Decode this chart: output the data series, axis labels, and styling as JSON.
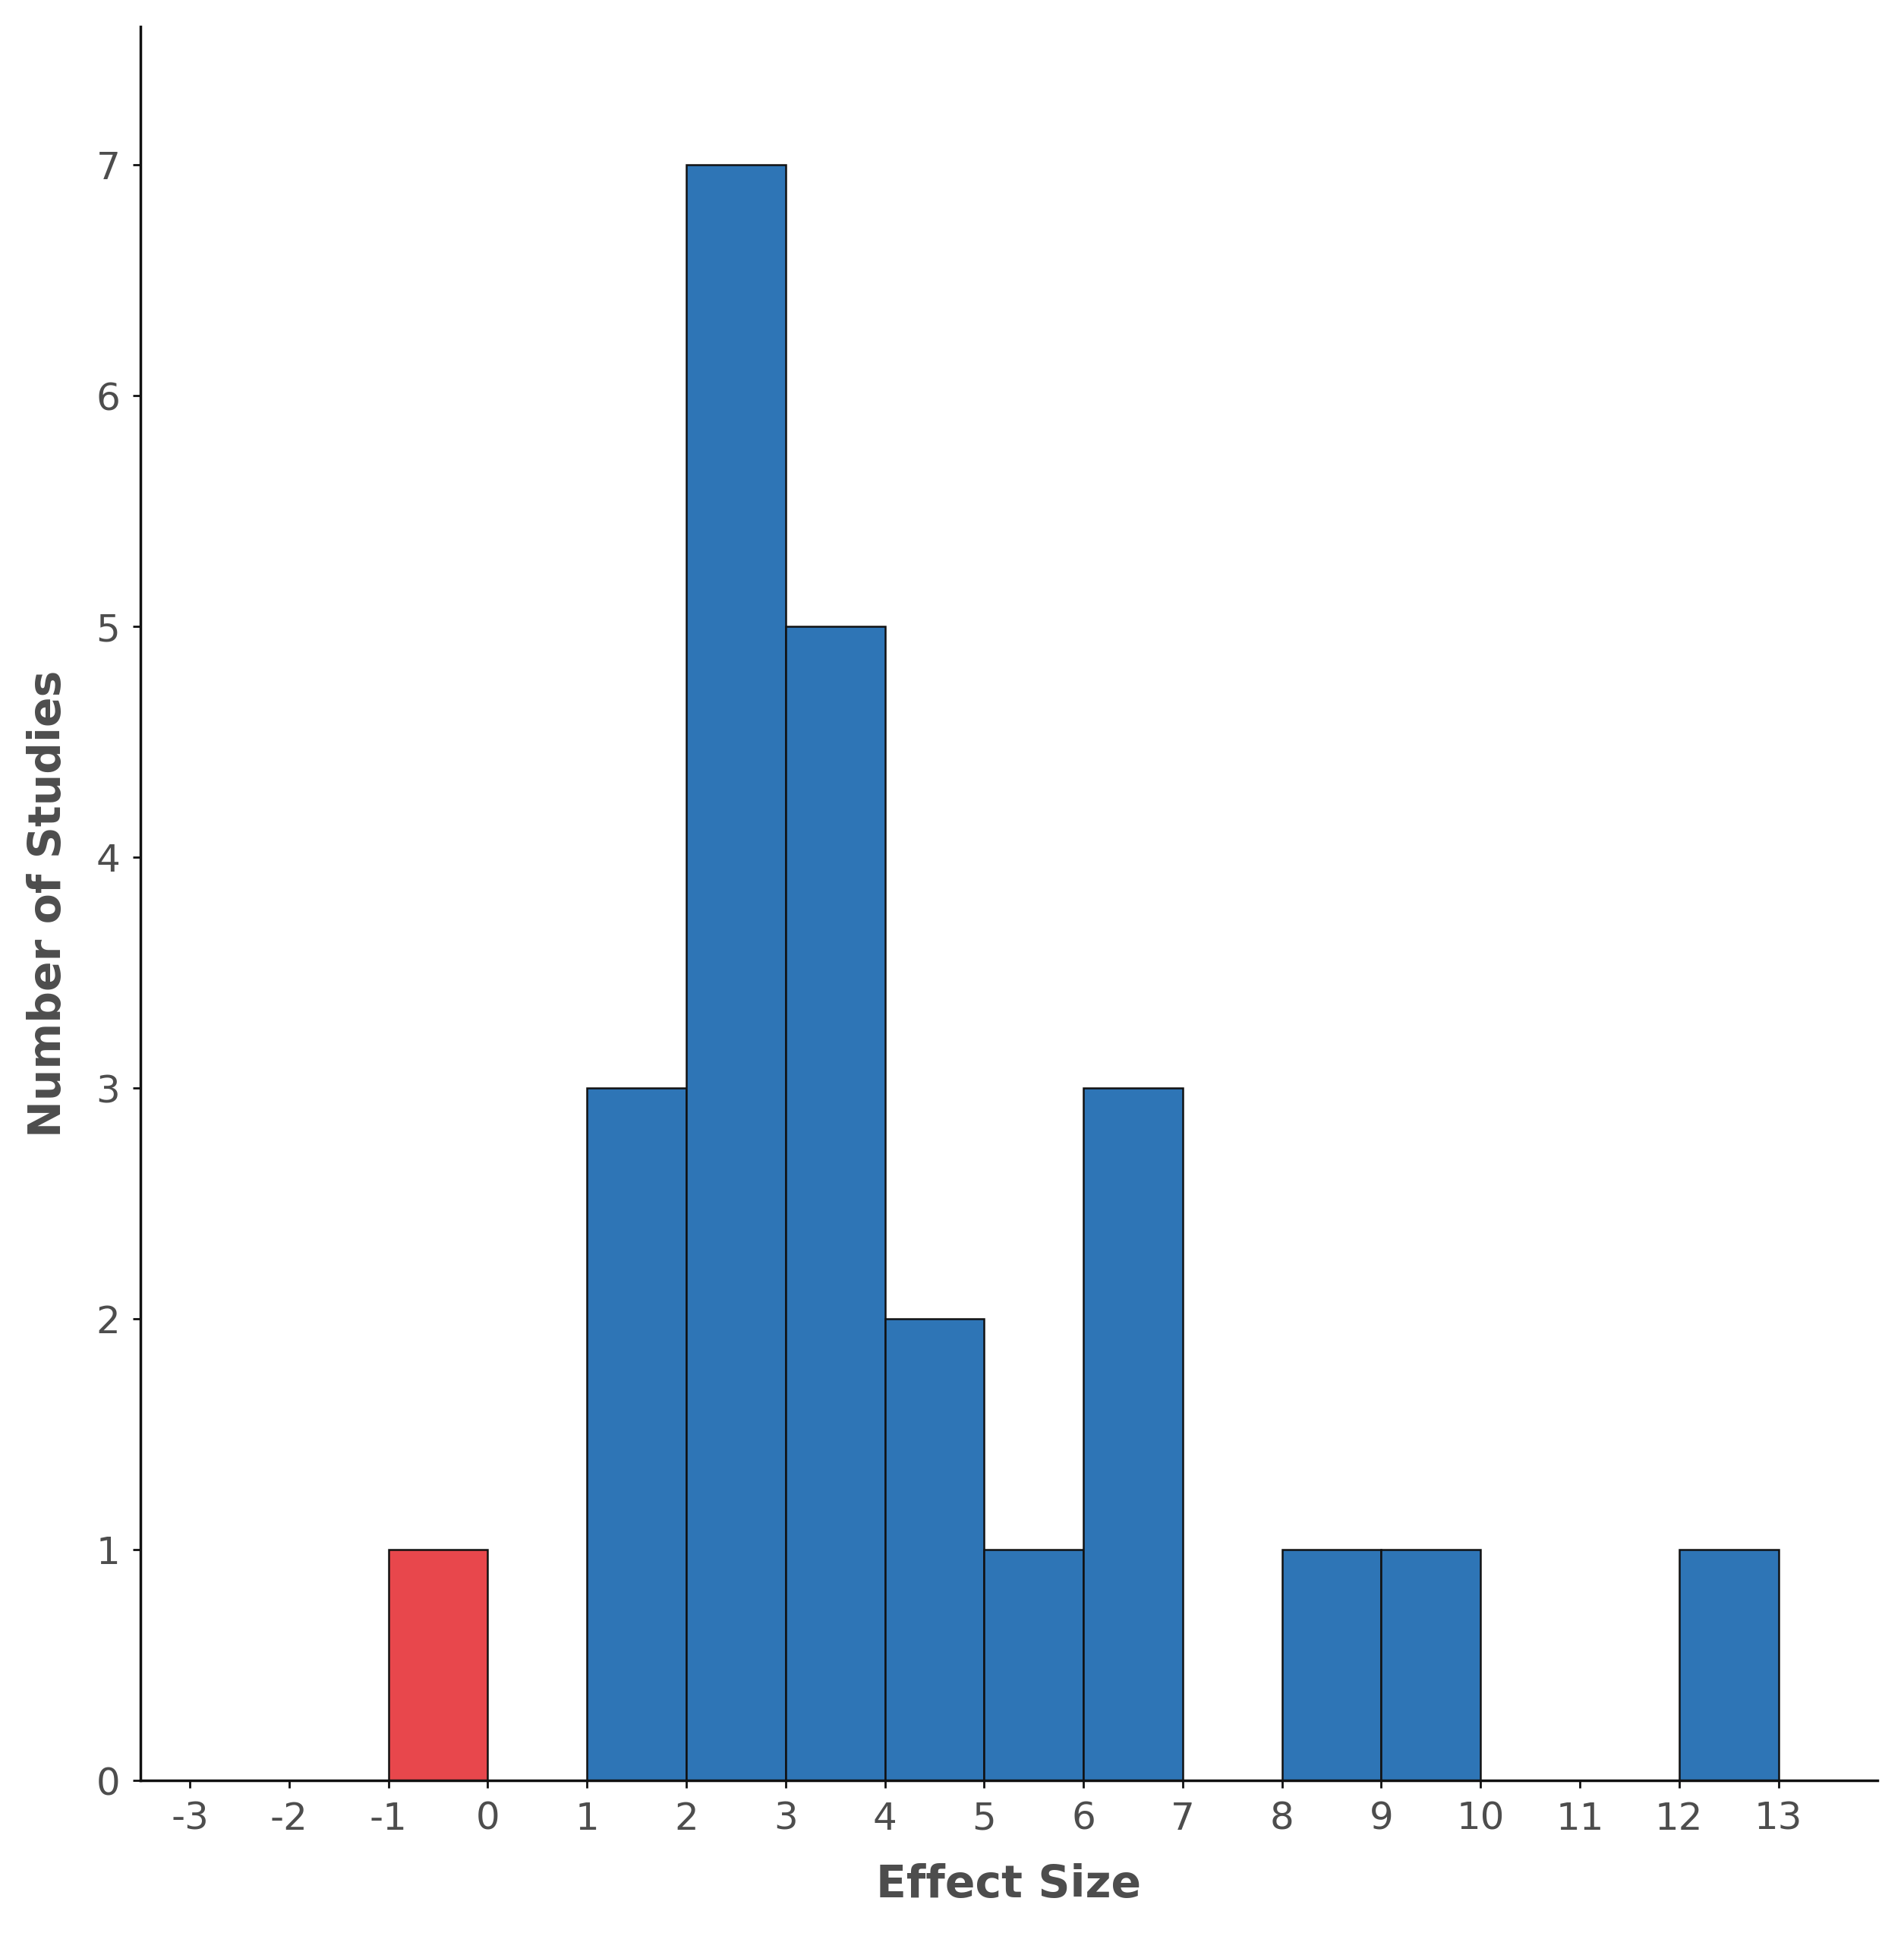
{
  "bar_lefts": [
    -1,
    1,
    2,
    3,
    4,
    5,
    6,
    8,
    9,
    12
  ],
  "bar_heights": [
    1,
    3,
    7,
    5,
    2,
    1,
    3,
    1,
    1,
    1
  ],
  "bar_colors": [
    "#e8474c",
    "#2e75b6",
    "#2e75b6",
    "#2e75b6",
    "#2e75b6",
    "#2e75b6",
    "#2e75b6",
    "#2e75b6",
    "#2e75b6",
    "#2e75b6"
  ],
  "bar_edge_color": "#111111",
  "bar_edge_width": 1.8,
  "bar_width": 1.0,
  "xlabel": "Effect Size",
  "ylabel": "Number of Studies",
  "xlim": [
    -3.5,
    14.0
  ],
  "ylim": [
    0,
    7.6
  ],
  "xticks": [
    -3,
    -2,
    -1,
    0,
    1,
    2,
    3,
    4,
    5,
    6,
    7,
    8,
    9,
    10,
    11,
    12,
    13
  ],
  "yticks": [
    0,
    1,
    2,
    3,
    4,
    5,
    6,
    7
  ],
  "xlabel_fontsize": 42,
  "ylabel_fontsize": 42,
  "tick_fontsize": 36,
  "tick_label_color": "#4d4d4d",
  "background_color": "#ffffff",
  "spine_linewidth": 2.5,
  "spine_color": "#111111"
}
